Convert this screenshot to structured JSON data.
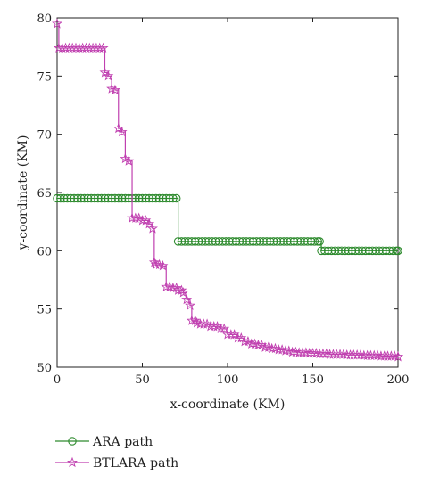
{
  "chart_data": {
    "type": "line",
    "xlabel": "x-coordinate (KM)",
    "ylabel": "y-coordinate (KM)",
    "xlim": [
      0,
      200
    ],
    "ylim": [
      50,
      80
    ],
    "xticks": [
      0,
      50,
      100,
      150,
      200
    ],
    "yticks": [
      50,
      55,
      60,
      65,
      70,
      75,
      80
    ],
    "grid": false,
    "legend_position": "bottom-left, below plot",
    "series": [
      {
        "name": "ARA path",
        "color": "#2e8b2e",
        "marker": "circle",
        "points": [
          [
            0,
            64.5
          ],
          [
            70,
            64.5
          ],
          [
            71,
            60.8
          ],
          [
            154,
            60.8
          ],
          [
            155,
            60
          ],
          [
            200,
            60
          ]
        ]
      },
      {
        "name": "BTLARA path",
        "color": "#c040b0",
        "marker": "star",
        "points": [
          [
            0,
            79.5
          ],
          [
            1,
            77.4
          ],
          [
            27,
            77.4
          ],
          [
            28,
            75.3
          ],
          [
            30,
            75.0
          ],
          [
            32,
            73.9
          ],
          [
            34,
            73.8
          ],
          [
            36,
            70.5
          ],
          [
            38,
            70.2
          ],
          [
            40,
            67.9
          ],
          [
            42,
            67.7
          ],
          [
            44,
            62.8
          ],
          [
            50,
            62.6
          ],
          [
            54,
            62.3
          ],
          [
            56,
            61.9
          ],
          [
            57,
            59.0
          ],
          [
            58,
            58.8
          ],
          [
            62,
            58.7
          ],
          [
            64,
            56.9
          ],
          [
            68,
            56.8
          ],
          [
            71,
            56.6
          ],
          [
            74,
            56.4
          ],
          [
            76,
            55.8
          ],
          [
            78,
            55.3
          ],
          [
            79,
            54.0
          ],
          [
            82,
            53.8
          ],
          [
            84,
            53.7
          ],
          [
            90,
            53.5
          ],
          [
            96,
            53.3
          ],
          [
            100,
            52.8
          ],
          [
            106,
            52.5
          ],
          [
            110,
            52.2
          ],
          [
            114,
            52.0
          ],
          [
            118,
            51.9
          ],
          [
            122,
            51.7
          ],
          [
            126,
            51.6
          ],
          [
            130,
            51.5
          ],
          [
            134,
            51.4
          ],
          [
            138,
            51.3
          ],
          [
            142,
            51.25
          ],
          [
            148,
            51.2
          ],
          [
            154,
            51.15
          ],
          [
            160,
            51.1
          ],
          [
            170,
            51.05
          ],
          [
            180,
            51.0
          ],
          [
            190,
            50.95
          ],
          [
            200,
            50.9
          ]
        ]
      }
    ]
  }
}
